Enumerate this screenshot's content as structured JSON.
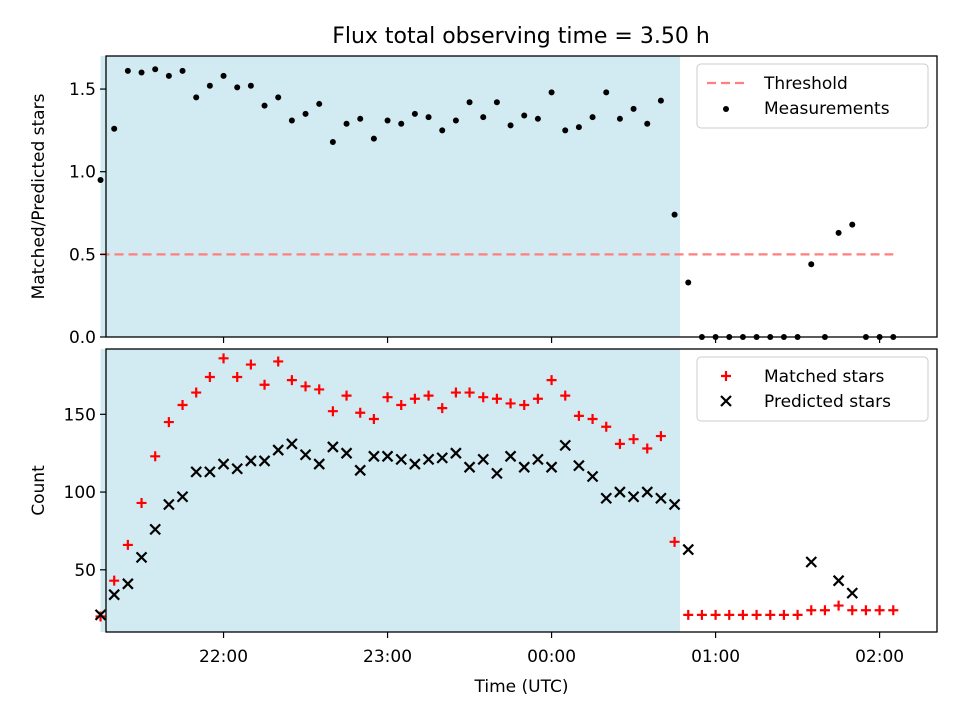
{
  "chart_data": [
    {
      "type": "scatter",
      "title": "Flux total observing time = 3.50 h",
      "ylabel": "Matched/Predicted stars",
      "xlabel": "",
      "xlim": [
        "21:17",
        "02:21"
      ],
      "ylim": [
        0,
        1.7
      ],
      "yticks": [
        0.0,
        0.5,
        1.0,
        1.5
      ],
      "ytick_labels": [
        "0.0",
        "0.5",
        "1.0",
        "1.5"
      ],
      "shaded_span": [
        "21:15",
        "00:47"
      ],
      "shade_color": "#add8e6",
      "legend_position": "top-right",
      "threshold": {
        "name": "Threshold",
        "value": 0.5,
        "x_range": [
          "21:15",
          "02:05"
        ],
        "color": "#ff7f7f"
      },
      "series": [
        {
          "name": "Measurements",
          "color": "#000000",
          "marker": "dot",
          "points": [
            [
              "21:15",
              0.95
            ],
            [
              "21:20",
              1.26
            ],
            [
              "21:25",
              1.61
            ],
            [
              "21:30",
              1.6
            ],
            [
              "21:35",
              1.62
            ],
            [
              "21:40",
              1.58
            ],
            [
              "21:45",
              1.61
            ],
            [
              "21:50",
              1.45
            ],
            [
              "21:55",
              1.52
            ],
            [
              "22:00",
              1.58
            ],
            [
              "22:05",
              1.51
            ],
            [
              "22:10",
              1.52
            ],
            [
              "22:15",
              1.4
            ],
            [
              "22:20",
              1.45
            ],
            [
              "22:25",
              1.31
            ],
            [
              "22:30",
              1.35
            ],
            [
              "22:35",
              1.41
            ],
            [
              "22:40",
              1.18
            ],
            [
              "22:45",
              1.29
            ],
            [
              "22:50",
              1.32
            ],
            [
              "22:55",
              1.2
            ],
            [
              "23:00",
              1.31
            ],
            [
              "23:05",
              1.29
            ],
            [
              "23:10",
              1.35
            ],
            [
              "23:15",
              1.33
            ],
            [
              "23:20",
              1.25
            ],
            [
              "23:25",
              1.31
            ],
            [
              "23:30",
              1.42
            ],
            [
              "23:35",
              1.33
            ],
            [
              "23:40",
              1.42
            ],
            [
              "23:45",
              1.28
            ],
            [
              "23:50",
              1.34
            ],
            [
              "23:55",
              1.32
            ],
            [
              "00:00",
              1.48
            ],
            [
              "00:05",
              1.25
            ],
            [
              "00:10",
              1.27
            ],
            [
              "00:15",
              1.33
            ],
            [
              "00:20",
              1.48
            ],
            [
              "00:25",
              1.32
            ],
            [
              "00:30",
              1.38
            ],
            [
              "00:35",
              1.29
            ],
            [
              "00:40",
              1.43
            ],
            [
              "00:45",
              0.74
            ],
            [
              "00:50",
              0.33
            ],
            [
              "00:55",
              0.0
            ],
            [
              "01:00",
              0.0
            ],
            [
              "01:05",
              0.0
            ],
            [
              "01:10",
              0.0
            ],
            [
              "01:15",
              0.0
            ],
            [
              "01:20",
              0.0
            ],
            [
              "01:25",
              0.0
            ],
            [
              "01:30",
              0.0
            ],
            [
              "01:35",
              0.44
            ],
            [
              "01:40",
              0.0
            ],
            [
              "01:45",
              0.63
            ],
            [
              "01:50",
              0.68
            ],
            [
              "01:55",
              0.0
            ],
            [
              "02:00",
              0.0
            ],
            [
              "02:05",
              0.0
            ]
          ]
        }
      ]
    },
    {
      "type": "scatter",
      "title": "",
      "ylabel": "Count",
      "xlabel": "Time (UTC)",
      "xlim": [
        "21:17",
        "02:21"
      ],
      "ylim": [
        10,
        192
      ],
      "yticks": [
        50,
        100,
        150
      ],
      "ytick_labels": [
        "50",
        "100",
        "150"
      ],
      "xticks": [
        "22:00",
        "23:00",
        "00:00",
        "01:00",
        "02:00"
      ],
      "xtick_labels": [
        "22:00",
        "23:00",
        "00:00",
        "01:00",
        "02:00"
      ],
      "shaded_span": [
        "21:15",
        "00:47"
      ],
      "shade_color": "#add8e6",
      "legend_position": "top-right",
      "series": [
        {
          "name": "Matched stars",
          "color": "#ff0000",
          "marker": "plus",
          "points": [
            [
              "21:15",
              20
            ],
            [
              "21:20",
              43
            ],
            [
              "21:25",
              66
            ],
            [
              "21:30",
              93
            ],
            [
              "21:35",
              123
            ],
            [
              "21:40",
              145
            ],
            [
              "21:45",
              156
            ],
            [
              "21:50",
              164
            ],
            [
              "21:55",
              174
            ],
            [
              "22:00",
              186
            ],
            [
              "22:05",
              174
            ],
            [
              "22:10",
              182
            ],
            [
              "22:15",
              169
            ],
            [
              "22:20",
              184
            ],
            [
              "22:25",
              172
            ],
            [
              "22:30",
              168
            ],
            [
              "22:35",
              166
            ],
            [
              "22:40",
              152
            ],
            [
              "22:45",
              162
            ],
            [
              "22:50",
              151
            ],
            [
              "22:55",
              147
            ],
            [
              "23:00",
              161
            ],
            [
              "23:05",
              156
            ],
            [
              "23:10",
              160
            ],
            [
              "23:15",
              162
            ],
            [
              "23:20",
              154
            ],
            [
              "23:25",
              164
            ],
            [
              "23:30",
              164
            ],
            [
              "23:35",
              161
            ],
            [
              "23:40",
              160
            ],
            [
              "23:45",
              157
            ],
            [
              "23:50",
              156
            ],
            [
              "23:55",
              160
            ],
            [
              "00:00",
              172
            ],
            [
              "00:05",
              162
            ],
            [
              "00:10",
              149
            ],
            [
              "00:15",
              147
            ],
            [
              "00:20",
              142
            ],
            [
              "00:25",
              131
            ],
            [
              "00:30",
              134
            ],
            [
              "00:35",
              128
            ],
            [
              "00:40",
              136
            ],
            [
              "00:45",
              68
            ],
            [
              "00:50",
              21
            ],
            [
              "00:55",
              21
            ],
            [
              "01:00",
              21
            ],
            [
              "01:05",
              21
            ],
            [
              "01:10",
              21
            ],
            [
              "01:15",
              21
            ],
            [
              "01:20",
              21
            ],
            [
              "01:25",
              21
            ],
            [
              "01:30",
              21
            ],
            [
              "01:35",
              24
            ],
            [
              "01:40",
              24
            ],
            [
              "01:45",
              27
            ],
            [
              "01:50",
              24
            ],
            [
              "01:55",
              24
            ],
            [
              "02:00",
              24
            ],
            [
              "02:05",
              24
            ]
          ]
        },
        {
          "name": "Predicted stars",
          "color": "#000000",
          "marker": "x",
          "points": [
            [
              "21:15",
              21
            ],
            [
              "21:20",
              34
            ],
            [
              "21:25",
              41
            ],
            [
              "21:30",
              58
            ],
            [
              "21:35",
              76
            ],
            [
              "21:40",
              92
            ],
            [
              "21:45",
              97
            ],
            [
              "21:50",
              113
            ],
            [
              "21:55",
              113
            ],
            [
              "22:00",
              118
            ],
            [
              "22:05",
              115
            ],
            [
              "22:10",
              120
            ],
            [
              "22:15",
              120
            ],
            [
              "22:20",
              127
            ],
            [
              "22:25",
              131
            ],
            [
              "22:30",
              124
            ],
            [
              "22:35",
              118
            ],
            [
              "22:40",
              129
            ],
            [
              "22:45",
              125
            ],
            [
              "22:50",
              114
            ],
            [
              "22:55",
              123
            ],
            [
              "23:00",
              123
            ],
            [
              "23:05",
              121
            ],
            [
              "23:10",
              118
            ],
            [
              "23:15",
              121
            ],
            [
              "23:20",
              122
            ],
            [
              "23:25",
              125
            ],
            [
              "23:30",
              116
            ],
            [
              "23:35",
              121
            ],
            [
              "23:40",
              112
            ],
            [
              "23:45",
              123
            ],
            [
              "23:50",
              116
            ],
            [
              "23:55",
              121
            ],
            [
              "00:00",
              116
            ],
            [
              "00:05",
              130
            ],
            [
              "00:10",
              117
            ],
            [
              "00:15",
              110
            ],
            [
              "00:20",
              96
            ],
            [
              "00:25",
              100
            ],
            [
              "00:30",
              97
            ],
            [
              "00:35",
              100
            ],
            [
              "00:40",
              96
            ],
            [
              "00:45",
              92
            ],
            [
              "00:50",
              63
            ],
            [
              "01:35",
              55
            ],
            [
              "01:45",
              43
            ],
            [
              "01:50",
              35
            ]
          ]
        }
      ]
    }
  ]
}
